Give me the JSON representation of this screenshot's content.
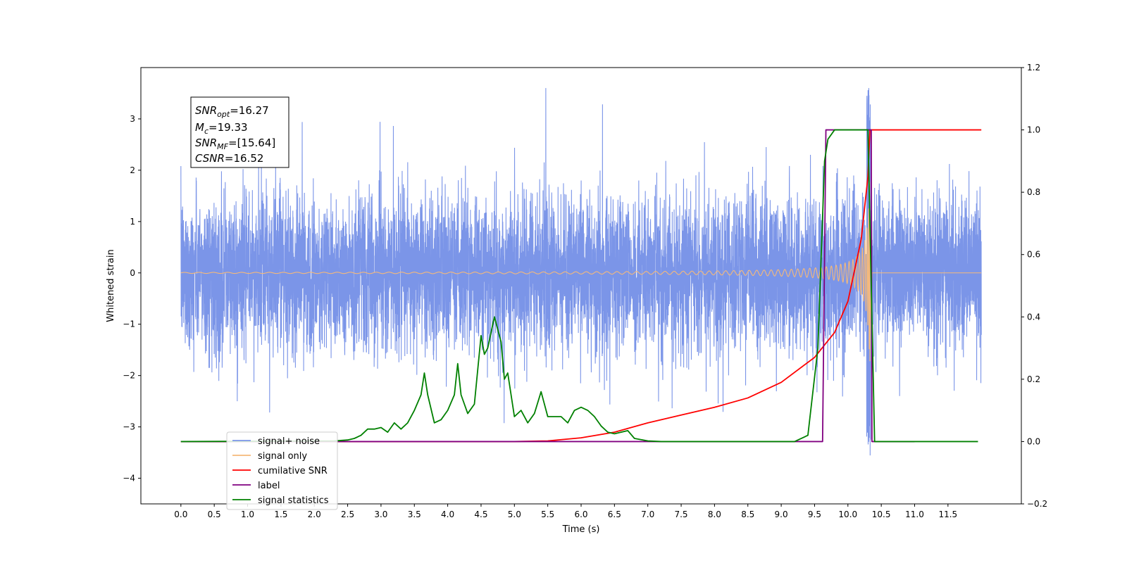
{
  "chart_data": {
    "type": "line",
    "xlabel": "Time (s)",
    "ylabel": "Whitened strain",
    "xlim": [
      -0.6,
      12.6
    ],
    "ylim": [
      -4.5,
      4.0
    ],
    "y2lim": [
      -0.2,
      1.2
    ],
    "x_ticks": [
      "0.0",
      "0.5",
      "1.0",
      "1.5",
      "2.0",
      "2.5",
      "3.0",
      "3.5",
      "4.0",
      "4.5",
      "5.0",
      "5.5",
      "6.0",
      "6.5",
      "7.0",
      "7.5",
      "8.0",
      "8.5",
      "9.0",
      "9.5",
      "10.0",
      "10.5",
      "11.0",
      "11.5"
    ],
    "y_ticks": [
      "3",
      "2",
      "1",
      "0",
      "−1",
      "−2",
      "−3",
      "−4"
    ],
    "y2_ticks": [
      "1.2",
      "1.0",
      "0.8",
      "0.6",
      "0.4",
      "0.2",
      "0.0",
      "−0.2"
    ],
    "annotation": {
      "snr_opt": {
        "base": "SNR",
        "sub": "opt",
        "value": "=16.27"
      },
      "mc": {
        "base": "M",
        "sub": "c",
        "value": "=19.33"
      },
      "snr_mf": {
        "base": "SNR",
        "sub": "MF",
        "value": "=[15.64]"
      },
      "csnr": {
        "base": "CSNR",
        "sub": "",
        "value": "=16.52"
      }
    },
    "legend_position": "lower-left",
    "series": [
      {
        "name": "signal+ noise",
        "color": "#7b95e8",
        "axis": "left",
        "description": "noise band, roughly ±1.5 with spikes to ±3",
        "t_start": 0.0,
        "t_end": 12.0,
        "noise_sigma": 0.75
      },
      {
        "name": "signal only",
        "color": "#f5b97a",
        "axis": "left",
        "description": "chirp growing to ±2.0 at merger ~10.33s",
        "merger_time": 10.33,
        "peak_amplitude": 2.0
      },
      {
        "name": "cumilative SNR",
        "color": "#ff0000",
        "axis": "right",
        "t": [
          0.0,
          5.0,
          5.5,
          6.0,
          6.5,
          7.0,
          7.5,
          8.0,
          8.5,
          9.0,
          9.5,
          9.8,
          10.0,
          10.2,
          10.3,
          10.33,
          12.0
        ],
        "y": [
          0.0,
          0.0,
          0.002,
          0.012,
          0.03,
          0.06,
          0.085,
          0.11,
          0.14,
          0.19,
          0.27,
          0.35,
          0.45,
          0.65,
          0.85,
          1.0,
          1.0
        ]
      },
      {
        "name": "label",
        "color": "#800080",
        "axis": "right",
        "t": [
          0.0,
          9.62,
          9.67,
          10.35,
          10.36,
          11.0
        ],
        "y": [
          0.0,
          0.0,
          1.0,
          1.0,
          0.0,
          0.0
        ]
      },
      {
        "name": "signal statistics",
        "color": "#008000",
        "axis": "right",
        "t": [
          0.0,
          2.3,
          2.5,
          2.6,
          2.7,
          2.8,
          2.9,
          3.0,
          3.1,
          3.2,
          3.3,
          3.4,
          3.5,
          3.6,
          3.65,
          3.7,
          3.8,
          3.9,
          4.0,
          4.1,
          4.15,
          4.2,
          4.3,
          4.4,
          4.5,
          4.55,
          4.6,
          4.7,
          4.8,
          4.85,
          4.9,
          5.0,
          5.1,
          5.2,
          5.3,
          5.4,
          5.5,
          5.6,
          5.7,
          5.8,
          5.9,
          6.0,
          6.1,
          6.2,
          6.3,
          6.4,
          6.5,
          6.6,
          6.7,
          6.8,
          7.0,
          7.2,
          9.2,
          9.4,
          9.55,
          9.65,
          9.7,
          9.8,
          10.3,
          10.35,
          10.4,
          11.95
        ],
        "y": [
          0.0,
          0.002,
          0.005,
          0.01,
          0.02,
          0.04,
          0.04,
          0.045,
          0.03,
          0.06,
          0.04,
          0.06,
          0.1,
          0.15,
          0.22,
          0.15,
          0.06,
          0.07,
          0.1,
          0.15,
          0.25,
          0.15,
          0.09,
          0.12,
          0.34,
          0.28,
          0.3,
          0.4,
          0.32,
          0.2,
          0.22,
          0.08,
          0.1,
          0.06,
          0.09,
          0.16,
          0.08,
          0.08,
          0.08,
          0.06,
          0.1,
          0.11,
          0.1,
          0.08,
          0.05,
          0.03,
          0.025,
          0.03,
          0.035,
          0.01,
          0.002,
          0.0,
          0.0,
          0.02,
          0.3,
          0.9,
          0.97,
          1.0,
          1.0,
          0.5,
          0.0,
          0.0
        ]
      }
    ]
  }
}
